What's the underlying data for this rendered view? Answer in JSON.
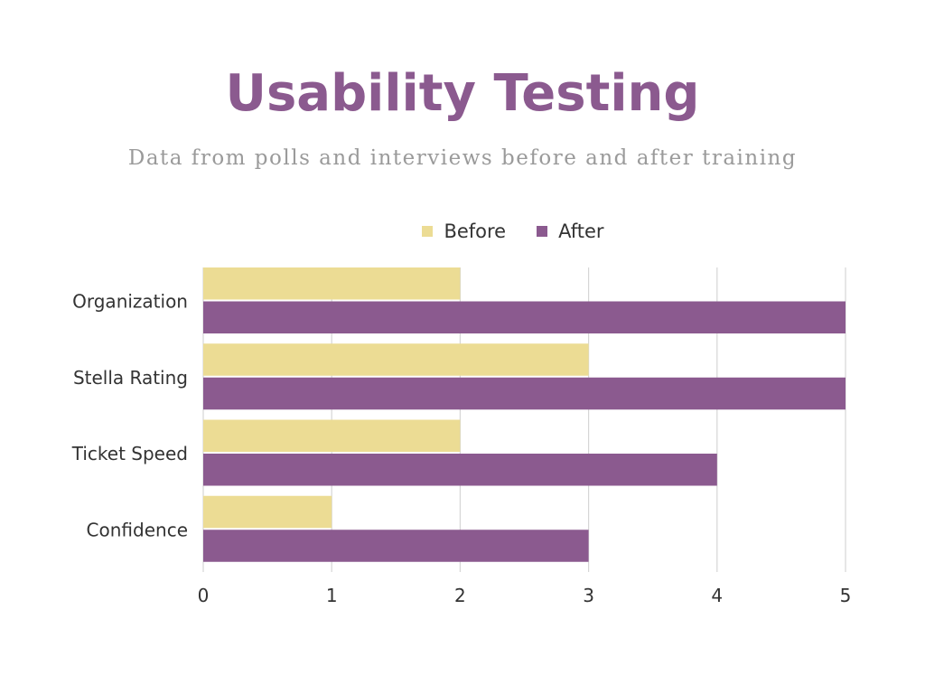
{
  "colors": {
    "title": "#8b5a8f",
    "subtitle": "#9a9a9a",
    "before": "#ecdc94",
    "after": "#8b5a8f",
    "grid": "#d6d6d6",
    "text": "#333333"
  },
  "chart_data": {
    "type": "bar",
    "orientation": "horizontal",
    "title": "Usability Testing",
    "subtitle": "Data from polls and interviews before and after training",
    "categories": [
      "Organization",
      "Stella Rating",
      "Ticket Speed",
      "Confidence"
    ],
    "series": [
      {
        "name": "Before",
        "values": [
          2,
          3,
          2,
          1
        ]
      },
      {
        "name": "After",
        "values": [
          5,
          5,
          4,
          3
        ]
      }
    ],
    "xlim": [
      0,
      5
    ],
    "xticks": [
      "0",
      "1",
      "2",
      "3",
      "4",
      "5"
    ],
    "grid": true,
    "legend_position": "top"
  }
}
